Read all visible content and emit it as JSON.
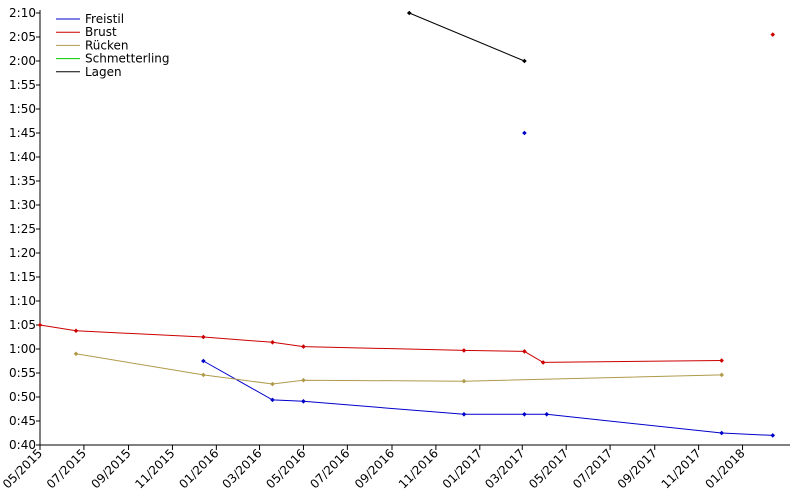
{
  "chart_data": {
    "type": "line",
    "title": "",
    "xlabel": "",
    "ylabel": "",
    "x_axis": {
      "type": "date",
      "range": [
        "2015-05-01",
        "2018-03-01"
      ],
      "tick_labels": [
        "05/2015",
        "07/2015",
        "09/2015",
        "11/2015",
        "01/2016",
        "03/2016",
        "05/2016",
        "07/2016",
        "09/2016",
        "11/2016",
        "01/2017",
        "03/2017",
        "05/2017",
        "07/2017",
        "09/2017",
        "11/2017",
        "01/2018"
      ],
      "tick_dates": [
        "2015-05-01",
        "2015-07-01",
        "2015-09-01",
        "2015-11-01",
        "2016-01-01",
        "2016-03-01",
        "2016-05-01",
        "2016-07-01",
        "2016-09-01",
        "2016-11-01",
        "2017-01-01",
        "2017-03-01",
        "2017-05-01",
        "2017-07-01",
        "2017-09-01",
        "2017-11-01",
        "2018-01-01"
      ]
    },
    "y_axis": {
      "unit": "seconds",
      "range": [
        40,
        130
      ],
      "tick_values": [
        40,
        45,
        50,
        55,
        60,
        65,
        70,
        75,
        80,
        85,
        90,
        95,
        100,
        105,
        110,
        115,
        120,
        125,
        130
      ],
      "tick_labels": [
        "0:40",
        "0:45",
        "0:50",
        "0:55",
        "1:00",
        "1:05",
        "1:10",
        "1:15",
        "1:20",
        "1:25",
        "1:30",
        "1:35",
        "1:40",
        "1:45",
        "1:50",
        "1:55",
        "2:00",
        "2:05",
        "2:10"
      ]
    },
    "legend": "top-left",
    "grid": false,
    "series": [
      {
        "name": "Freistil",
        "color": "#0000cc",
        "points": [
          [
            "2015-12-14",
            57.5
          ],
          [
            "2016-03-19",
            49.4
          ],
          [
            "2016-05-01",
            49.1
          ],
          [
            "2016-12-10",
            46.4
          ],
          [
            "2017-03-04",
            46.4
          ],
          [
            "2017-04-04",
            46.4
          ],
          [
            "2017-12-03",
            42.5
          ],
          [
            "2018-02-12",
            42.0
          ]
        ]
      },
      {
        "name": "Freistil",
        "color": "#0000cc",
        "points": [
          [
            "2017-03-04",
            105.0
          ]
        ]
      },
      {
        "name": "Brust",
        "color": "#cc0000",
        "points": [
          [
            "2015-05-01",
            65.0
          ],
          [
            "2015-06-20",
            63.8
          ],
          [
            "2015-12-14",
            62.5
          ],
          [
            "2016-03-19",
            61.4
          ],
          [
            "2016-05-01",
            60.5
          ],
          [
            "2016-12-10",
            59.7
          ],
          [
            "2017-03-04",
            59.5
          ],
          [
            "2017-03-30",
            57.2
          ],
          [
            "2017-12-03",
            57.6
          ]
        ]
      },
      {
        "name": "Brust",
        "color": "#cc0000",
        "points": [
          [
            "2018-02-12",
            125.5
          ]
        ]
      },
      {
        "name": "Rücken",
        "color": "#b09a4a",
        "points": [
          [
            "2015-06-20",
            59.0
          ],
          [
            "2015-12-14",
            54.6
          ],
          [
            "2016-03-19",
            52.7
          ],
          [
            "2016-05-01",
            53.5
          ],
          [
            "2016-12-10",
            53.3
          ],
          [
            "2017-12-03",
            54.6
          ]
        ]
      },
      {
        "name": "Schmetterling",
        "color": "#00cc00",
        "points": []
      },
      {
        "name": "Lagen",
        "color": "#000000",
        "points": [
          [
            "2016-09-25",
            130.0
          ],
          [
            "2017-03-04",
            120.0
          ]
        ]
      }
    ],
    "legend_entries": [
      {
        "name": "Freistil",
        "color": "#0000cc"
      },
      {
        "name": "Brust",
        "color": "#cc0000"
      },
      {
        "name": "Rücken",
        "color": "#b09a4a"
      },
      {
        "name": "Schmetterling",
        "color": "#00cc00"
      },
      {
        "name": "Lagen",
        "color": "#000000"
      }
    ]
  }
}
